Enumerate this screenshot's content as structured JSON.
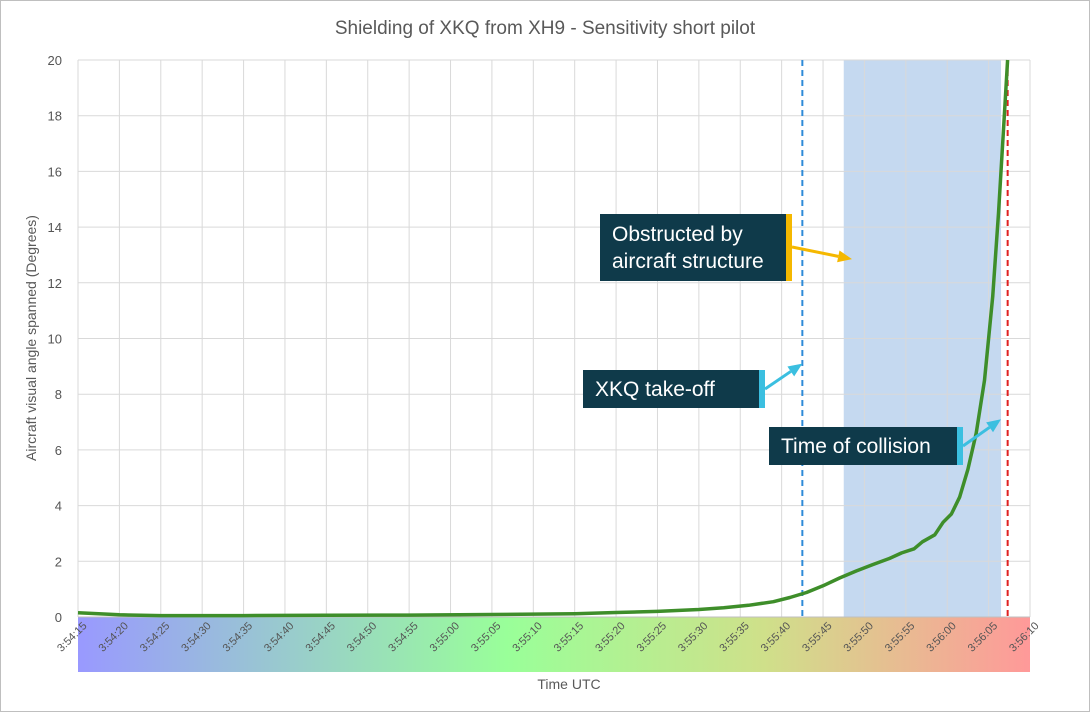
{
  "chart_data": {
    "type": "line",
    "title": "Shielding of XKQ from XH9 - Sensitivity short pilot",
    "xlabel": "Time UTC",
    "ylabel": "Aircraft visual angle spanned (Degrees)",
    "x_ticks": [
      "3:54:15",
      "3:54:20",
      "3:54:25",
      "3:54:30",
      "3:54:35",
      "3:54:40",
      "3:54:45",
      "3:54:50",
      "3:54:55",
      "3:55:00",
      "3:55:05",
      "3:55:10",
      "3:55:15",
      "3:55:20",
      "3:55:25",
      "3:55:30",
      "3:55:35",
      "3:55:40",
      "3:55:45",
      "3:55:50",
      "3:55:55",
      "3:56:00",
      "3:56:05",
      "3:56:10"
    ],
    "xlim_seconds_after_3_54_15": [
      0,
      115
    ],
    "ylim": [
      0,
      20
    ],
    "y_ticks": [
      0,
      2,
      4,
      6,
      8,
      10,
      12,
      14,
      16,
      18,
      20
    ],
    "grid": true,
    "series": [
      {
        "color": "#3e8e2a",
        "points": [
          [
            0,
            0.15
          ],
          [
            5,
            0.08
          ],
          [
            10,
            0.05
          ],
          [
            20,
            0.05
          ],
          [
            30,
            0.06
          ],
          [
            40,
            0.07
          ],
          [
            50,
            0.09
          ],
          [
            60,
            0.12
          ],
          [
            65,
            0.16
          ],
          [
            70,
            0.2
          ],
          [
            75,
            0.27
          ],
          [
            78,
            0.33
          ],
          [
            81,
            0.42
          ],
          [
            84,
            0.55
          ],
          [
            86,
            0.7
          ],
          [
            88,
            0.88
          ],
          [
            90,
            1.12
          ],
          [
            92,
            1.4
          ],
          [
            94,
            1.65
          ],
          [
            96,
            1.88
          ],
          [
            98,
            2.1
          ],
          [
            99.5,
            2.3
          ],
          [
            101,
            2.45
          ],
          [
            102,
            2.7
          ],
          [
            103.5,
            2.95
          ],
          [
            104.5,
            3.4
          ],
          [
            105.5,
            3.7
          ],
          [
            106.5,
            4.3
          ],
          [
            107.5,
            5.3
          ],
          [
            108.5,
            6.6
          ],
          [
            109.5,
            8.5
          ],
          [
            110.5,
            11.5
          ],
          [
            111.2,
            14.5
          ],
          [
            111.8,
            17.5
          ],
          [
            112.3,
            20
          ]
        ]
      }
    ],
    "vertical_lines": [
      {
        "label": "XKQ take-off",
        "x": 87.5,
        "color": "#2e8bd8"
      },
      {
        "label": "Time of collision",
        "x": 112.3,
        "color": "#e02020"
      }
    ],
    "shaded_region": {
      "label": "Obstructed by aircraft structure",
      "x_start": 92.5,
      "x_end": 111.5,
      "color": "#c5d9f0"
    },
    "annotations": [
      {
        "text": "Obstructed by aircraft structure",
        "arrow_color": "#f5b800",
        "point_x": 93.5,
        "point_y": 12.85
      },
      {
        "text": "XKQ take-off",
        "arrow_color": "#3bbfe0",
        "point_x": 87.5,
        "point_y": 9.1
      },
      {
        "text": "Time of collision",
        "arrow_color": "#3bbfe0",
        "point_x": 111.5,
        "point_y": 7.1
      }
    ],
    "x_axis_band": "gradient blue-green-red"
  }
}
